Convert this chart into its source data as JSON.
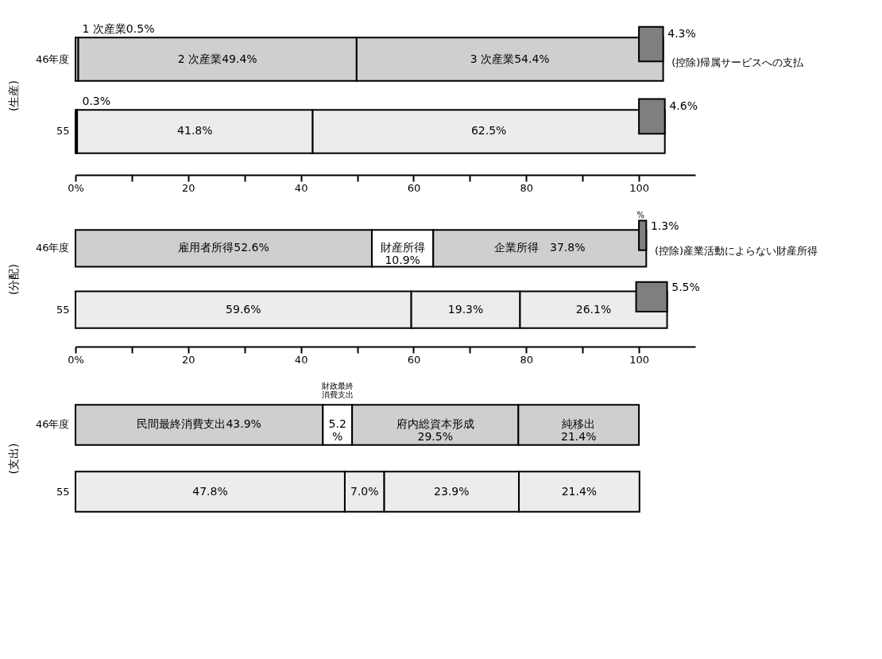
{
  "chart_data": [
    {
      "type": "bar",
      "orientation": "horizontal",
      "stacked": true,
      "ylabel": "(生産)",
      "categories": [
        "46年度",
        "55"
      ],
      "xlim": [
        0,
        110
      ],
      "xticks": [
        {
          "value": 0,
          "label": "0%"
        },
        {
          "value": 10,
          "label": null
        },
        20,
        {
          "value": 30,
          "label": null
        },
        40,
        {
          "value": 50,
          "label": null
        },
        60,
        {
          "value": 70,
          "label": null
        },
        80,
        {
          "value": 90,
          "label": null
        },
        100
      ],
      "grid": false,
      "series": [
        {
          "values": [
            0.5,
            0.3
          ],
          "colors": [
            "#cfcfcf",
            "#ececec"
          ],
          "value_labels": [
            "1 次産業0.5%",
            "0.3%"
          ]
        },
        {
          "values": [
            49.4,
            41.8
          ],
          "colors": [
            "#cfcfcf",
            "#ececec"
          ],
          "value_labels": [
            "2 次産業49.4%",
            "41.8%"
          ]
        },
        {
          "values": [
            54.4,
            62.5
          ],
          "colors": [
            "#cfcfcf",
            "#ececec"
          ],
          "value_labels": [
            "3 次産業54.4%",
            "62.5%"
          ]
        },
        {
          "values": [
            -4.3,
            -4.6
          ],
          "base": [
            104.3,
            104.6
          ],
          "colors": [
            "#7f7f7f",
            "#7f7f7f"
          ],
          "value_labels": [
            "4.3%",
            "4.6%"
          ]
        }
      ],
      "annotations": [
        "(控除)帰属サービスへの支払"
      ]
    },
    {
      "type": "bar",
      "orientation": "horizontal",
      "stacked": true,
      "ylabel": "(分配)",
      "categories": [
        "46年度",
        "55"
      ],
      "xlim": [
        0,
        110
      ],
      "xticks": [
        {
          "value": 0,
          "label": "0%"
        },
        {
          "value": 10,
          "label": null
        },
        20,
        {
          "value": 30,
          "label": null
        },
        40,
        {
          "value": 50,
          "label": null
        },
        60,
        {
          "value": 70,
          "label": null
        },
        80,
        {
          "value": 90,
          "label": null
        },
        100
      ],
      "grid": false,
      "series": [
        {
          "values": [
            52.6,
            59.6
          ],
          "colors": [
            "#cfcfcf",
            "#ececec"
          ],
          "value_labels": [
            "雇用者所得52.6%",
            "59.6%"
          ]
        },
        {
          "values": [
            10.9,
            19.3
          ],
          "colors": [
            "#ffffff",
            "#ececec"
          ],
          "value_labels": [
            "財産所得\n10.9%",
            "19.3%"
          ]
        },
        {
          "values": [
            37.8,
            26.1
          ],
          "colors": [
            "#cfcfcf",
            "#ececec"
          ],
          "value_labels": [
            "企業所得　37.8%",
            "26.1%"
          ]
        },
        {
          "values": [
            -1.3,
            -5.5
          ],
          "base": [
            101.3,
            105.0
          ],
          "colors": [
            "#7f7f7f",
            "#7f7f7f"
          ],
          "value_labels": [
            "1.3%",
            "5.5%"
          ]
        }
      ],
      "annotations": [
        "(控除)産業活動によらない財産所得",
        "%"
      ]
    },
    {
      "type": "bar",
      "orientation": "horizontal",
      "stacked": true,
      "ylabel": "(支出)",
      "categories": [
        "46年度",
        "55"
      ],
      "tick_labels": "y",
      "grid": false,
      "series": [
        {
          "values": [
            43.9,
            47.8
          ],
          "colors": [
            "#cfcfcf",
            "#ececec"
          ],
          "value_labels": [
            "民間最終消費支出43.9%",
            "47.8%"
          ]
        },
        {
          "values": [
            5.2,
            7.0
          ],
          "colors": [
            "#ffffff",
            "#ececec"
          ],
          "value_labels": [
            "5.2\n%",
            "7.0%"
          ]
        },
        {
          "values": [
            29.5,
            23.9
          ],
          "colors": [
            "#cfcfcf",
            "#ececec"
          ],
          "value_labels": [
            "府内総資本形成\n29.5%",
            "23.9%"
          ]
        },
        {
          "values": [
            21.4,
            21.4
          ],
          "colors": [
            "#cfcfcf",
            "#ececec"
          ],
          "value_labels": [
            "純移出\n21.4%",
            "21.4%"
          ]
        }
      ],
      "annotations": [
        "財政最終消費支出"
      ]
    }
  ]
}
